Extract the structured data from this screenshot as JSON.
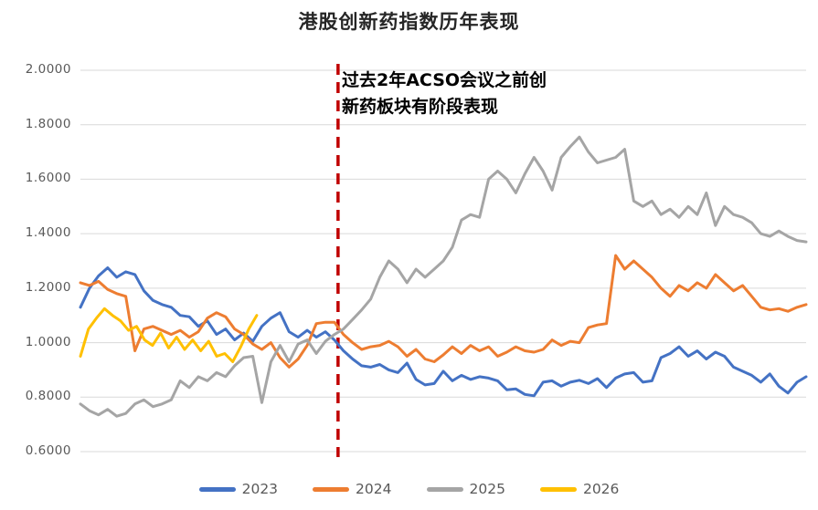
{
  "title": "港股创新药指数历年表现",
  "annotation": {
    "line1": "过去2年ACSO会议之前创",
    "line2": "新药板块有阶段表现"
  },
  "y_axis": {
    "ticks": [
      {
        "label": "2.0000",
        "value": 2.0
      },
      {
        "label": "1.8000",
        "value": 1.8
      },
      {
        "label": "1.6000",
        "value": 1.6
      },
      {
        "label": "1.4000",
        "value": 1.4
      },
      {
        "label": "1.2000",
        "value": 1.2
      },
      {
        "label": "1.0000",
        "value": 1.0
      },
      {
        "label": "0.8000",
        "value": 0.8
      },
      {
        "label": "0.6000",
        "value": 0.6
      }
    ]
  },
  "colors": {
    "gridline": "#D9D9D9",
    "axis_text": "#595959",
    "title_text": "#262626",
    "annotation_text": "#000000",
    "vline": "#C00000"
  },
  "chart_data": {
    "type": "line",
    "title": "港股创新药指数历年表现",
    "ylabel": "",
    "xlabel": "",
    "ylim": [
      0.6,
      2.0
    ],
    "grid": true,
    "legend_position": "bottom",
    "vline": {
      "x_frac": 0.355,
      "color": "#C00000",
      "style": "dashed",
      "note": "过去2年ACSO会议之前创新药板块有阶段表现"
    },
    "series": [
      {
        "name": "2023",
        "color": "#4472C4",
        "x_span": [
          0,
          1
        ],
        "values": [
          1.13,
          1.2,
          1.245,
          1.275,
          1.24,
          1.26,
          1.25,
          1.19,
          1.155,
          1.14,
          1.13,
          1.1,
          1.095,
          1.06,
          1.08,
          1.03,
          1.05,
          1.01,
          1.035,
          1.005,
          1.06,
          1.09,
          1.11,
          1.04,
          1.02,
          1.045,
          1.02,
          1.04,
          1.01,
          0.97,
          0.94,
          0.915,
          0.91,
          0.92,
          0.9,
          0.89,
          0.925,
          0.865,
          0.845,
          0.85,
          0.895,
          0.86,
          0.88,
          0.865,
          0.875,
          0.87,
          0.86,
          0.827,
          0.83,
          0.81,
          0.805,
          0.855,
          0.86,
          0.84,
          0.855,
          0.862,
          0.85,
          0.868,
          0.835,
          0.87,
          0.885,
          0.89,
          0.855,
          0.86,
          0.945,
          0.96,
          0.985,
          0.95,
          0.97,
          0.94,
          0.965,
          0.95,
          0.91,
          0.895,
          0.88,
          0.855,
          0.885,
          0.84,
          0.815,
          0.855,
          0.875
        ]
      },
      {
        "name": "2024",
        "color": "#ED7D31",
        "x_span": [
          0,
          1
        ],
        "values": [
          1.22,
          1.21,
          1.225,
          1.195,
          1.18,
          1.17,
          0.97,
          1.05,
          1.06,
          1.045,
          1.03,
          1.045,
          1.02,
          1.04,
          1.09,
          1.11,
          1.095,
          1.05,
          1.03,
          0.995,
          0.975,
          1.0,
          0.945,
          0.91,
          0.94,
          0.99,
          1.07,
          1.075,
          1.075,
          1.03,
          1.0,
          0.975,
          0.985,
          0.99,
          1.005,
          0.985,
          0.95,
          0.975,
          0.94,
          0.93,
          0.955,
          0.985,
          0.96,
          0.99,
          0.97,
          0.985,
          0.95,
          0.965,
          0.985,
          0.97,
          0.965,
          0.975,
          1.01,
          0.99,
          1.005,
          1.0,
          1.055,
          1.065,
          1.07,
          1.32,
          1.27,
          1.3,
          1.27,
          1.24,
          1.2,
          1.17,
          1.21,
          1.19,
          1.22,
          1.2,
          1.25,
          1.22,
          1.19,
          1.21,
          1.17,
          1.13,
          1.12,
          1.125,
          1.115,
          1.13,
          1.14
        ]
      },
      {
        "name": "2025",
        "color": "#A5A5A5",
        "x_span": [
          0,
          1
        ],
        "values": [
          0.775,
          0.75,
          0.735,
          0.755,
          0.73,
          0.74,
          0.775,
          0.79,
          0.765,
          0.775,
          0.79,
          0.86,
          0.835,
          0.875,
          0.86,
          0.89,
          0.875,
          0.915,
          0.945,
          0.95,
          0.78,
          0.93,
          0.99,
          0.93,
          0.995,
          1.01,
          0.96,
          1.005,
          1.03,
          1.05,
          1.085,
          1.12,
          1.16,
          1.24,
          1.3,
          1.27,
          1.22,
          1.27,
          1.24,
          1.27,
          1.3,
          1.35,
          1.45,
          1.47,
          1.46,
          1.6,
          1.63,
          1.6,
          1.55,
          1.62,
          1.68,
          1.63,
          1.56,
          1.68,
          1.72,
          1.755,
          1.7,
          1.66,
          1.67,
          1.68,
          1.71,
          1.52,
          1.5,
          1.52,
          1.47,
          1.49,
          1.46,
          1.5,
          1.47,
          1.55,
          1.43,
          1.5,
          1.47,
          1.46,
          1.44,
          1.4,
          1.39,
          1.41,
          1.39,
          1.375,
          1.37
        ]
      },
      {
        "name": "2026",
        "color": "#FFC000",
        "x_span": [
          0,
          0.243
        ],
        "values": [
          0.95,
          1.05,
          1.09,
          1.125,
          1.1,
          1.08,
          1.045,
          1.06,
          1.01,
          0.99,
          1.035,
          0.98,
          1.02,
          0.975,
          1.01,
          0.97,
          1.005,
          0.95,
          0.96,
          0.93,
          0.985,
          1.05,
          1.1
        ]
      }
    ]
  }
}
